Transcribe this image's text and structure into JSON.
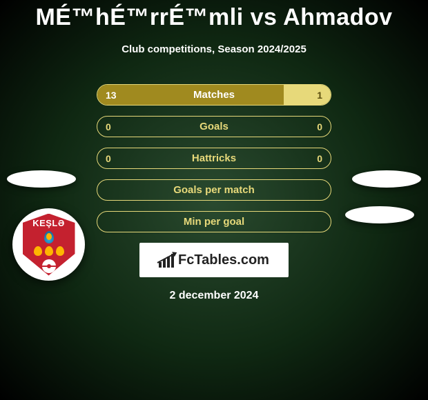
{
  "title": "MÉ™hÉ™rrÉ™mli vs Ahmadov",
  "subtitle": "Club competitions, Season 2024/2025",
  "colors": {
    "bar_left": "#a08a1f",
    "bar_right": "#e7d97a",
    "border": "#e7d97a",
    "text_on_left": "#ffffff",
    "text_on_right": "#5a4d0e",
    "text_empty": "#e7d97a",
    "background_center": "#2a4a2f",
    "background_edge": "#000000",
    "badge_bg": "#c4212f"
  },
  "club_badge": {
    "name": "KEŞLƏ",
    "subtitle": "FK"
  },
  "rows": [
    {
      "label": "Matches",
      "left": "13",
      "right": "1",
      "left_pct": 80,
      "right_pct": 20,
      "has_bars": true
    },
    {
      "label": "Goals",
      "left": "0",
      "right": "0",
      "left_pct": 0,
      "right_pct": 0,
      "has_bars": false
    },
    {
      "label": "Hattricks",
      "left": "0",
      "right": "0",
      "left_pct": 0,
      "right_pct": 0,
      "has_bars": false
    },
    {
      "label": "Goals per match",
      "left": "",
      "right": "",
      "left_pct": 0,
      "right_pct": 0,
      "has_bars": false
    },
    {
      "label": "Min per goal",
      "left": "",
      "right": "",
      "left_pct": 0,
      "right_pct": 0,
      "has_bars": false
    }
  ],
  "branding": "FcTables.com",
  "date": "2 december 2024"
}
